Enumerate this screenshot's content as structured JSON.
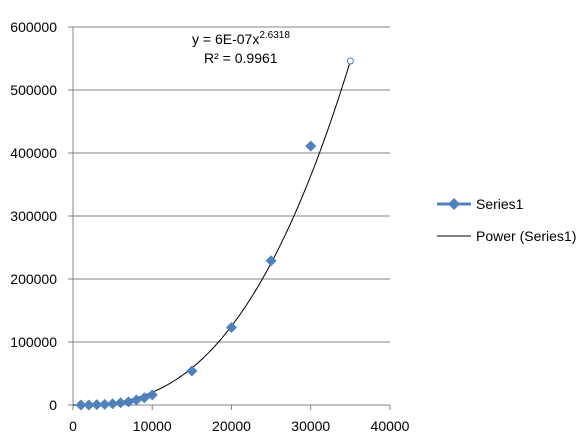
{
  "chart_data": {
    "type": "scatter",
    "xlim": [
      0,
      40000
    ],
    "ylim": [
      0,
      600000
    ],
    "x_ticks": [
      0,
      10000,
      20000,
      30000,
      40000
    ],
    "y_ticks": [
      0,
      100000,
      200000,
      300000,
      400000,
      500000,
      600000
    ],
    "grid": "horizontal",
    "legend_position": "right",
    "series": [
      {
        "name": "Series1",
        "color": "#4f81bd",
        "marker": "diamond",
        "x": [
          1000,
          2000,
          3000,
          4000,
          5000,
          6000,
          7000,
          8000,
          9000,
          10000,
          15000,
          20000,
          25000,
          30000
        ],
        "y": [
          0,
          0,
          500,
          1000,
          2000,
          3500,
          5000,
          8000,
          11500,
          16000,
          54000,
          123000,
          229000,
          411000
        ]
      }
    ],
    "trendline": {
      "name": "Power (Series1)",
      "type": "power",
      "color": "#000000",
      "coefficient": 6e-07,
      "exponent": 2.6318,
      "x_end": 35000,
      "equation_prefix": "y = 6E-07x",
      "equation_exponent": "2.6318",
      "r_squared_text": "R² = 0.9961"
    }
  }
}
